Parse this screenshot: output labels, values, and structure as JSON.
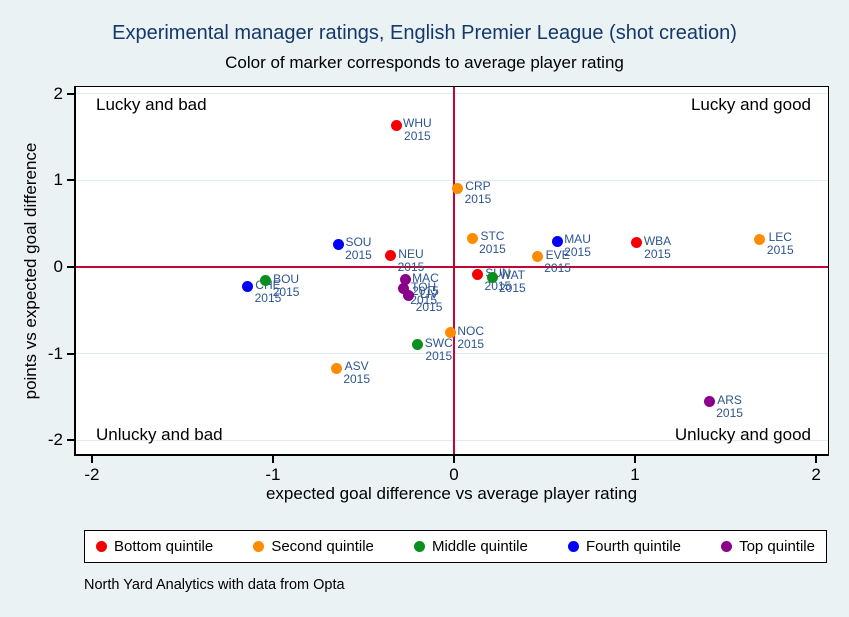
{
  "header": {
    "title": "Experimental manager ratings, English Premier League (shot creation)",
    "subtitle": "Color of marker corresponds to average player rating"
  },
  "source_note": "North Yard Analytics with data from Opta",
  "colors": {
    "background": "#eaf2f3",
    "plot_background": "#ffffff",
    "gridline": "#dfeaf2",
    "reference_line": "#c10534",
    "title_text": "#14386c",
    "marker_label_text": "#2d5590"
  },
  "chart_data": {
    "type": "scatter",
    "title": "Experimental manager ratings, English Premier League (shot creation)",
    "subtitle": "Color of marker corresponds to average player rating",
    "xlabel": "expected goal difference vs average player rating",
    "ylabel": "points vs expected goal difference",
    "xlim": [
      -2.088,
      2.066
    ],
    "ylim": [
      -2.161,
      2.08
    ],
    "x_ticks": [
      -2,
      -1,
      0,
      1,
      2
    ],
    "y_ticks": [
      2,
      1,
      0,
      -1,
      -2
    ],
    "grid": "horizontal",
    "reference_lines": {
      "x": 0,
      "y": 0
    },
    "quadrant_labels": {
      "top_left": "Lucky and bad",
      "top_right": "Lucky and good",
      "bottom_left": "Unlucky and bad",
      "bottom_right": "Unlucky and good"
    },
    "legend": {
      "position": "bottom",
      "entries": [
        {
          "label": "Bottom quintile",
          "color": "#f40000"
        },
        {
          "label": "Second quintile",
          "color": "#ff8c00"
        },
        {
          "label": "Middle quintile",
          "color": "#0a8f1f"
        },
        {
          "label": "Fourth quintile",
          "color": "#0000fa"
        },
        {
          "label": "Top quintile",
          "color": "#8b008b"
        }
      ]
    },
    "points": [
      {
        "team": "WHU",
        "year": "2015",
        "quintile": "Bottom quintile",
        "x": -0.32,
        "y": 1.64
      },
      {
        "team": "CRP",
        "year": "2015",
        "quintile": "Second quintile",
        "x": 0.02,
        "y": 0.91
      },
      {
        "team": "STC",
        "year": "2015",
        "quintile": "Second quintile",
        "x": 0.1,
        "y": 0.33
      },
      {
        "team": "MAU",
        "year": "2015",
        "quintile": "Fourth quintile",
        "x": 0.57,
        "y": 0.3
      },
      {
        "team": "EVE",
        "year": "2015",
        "quintile": "Second quintile",
        "x": 0.46,
        "y": 0.12
      },
      {
        "team": "WBA",
        "year": "2015",
        "quintile": "Bottom quintile",
        "x": 1.01,
        "y": 0.28
      },
      {
        "team": "LEC",
        "year": "2015",
        "quintile": "Second quintile",
        "x": 1.69,
        "y": 0.32
      },
      {
        "team": "SOU",
        "year": "2015",
        "quintile": "Fourth quintile",
        "x": -0.64,
        "y": 0.26
      },
      {
        "team": "NEU",
        "year": "2015",
        "quintile": "Bottom quintile",
        "x": -0.35,
        "y": 0.13
      },
      {
        "team": "CHE",
        "year": "2015",
        "quintile": "Fourth quintile",
        "x": -1.14,
        "y": -0.23
      },
      {
        "team": "BOU",
        "year": "2015",
        "quintile": "Middle quintile",
        "x": -1.04,
        "y": -0.16
      },
      {
        "team": "MAC",
        "year": "2015",
        "quintile": "Top quintile",
        "x": -0.27,
        "y": -0.15
      },
      {
        "team": "TOH",
        "year": "2015",
        "quintile": "Top quintile",
        "x": -0.28,
        "y": -0.25
      },
      {
        "team": "LIV",
        "year": "2015",
        "quintile": "Top quintile",
        "x": -0.25,
        "y": -0.33
      },
      {
        "team": "SUN",
        "year": "2015",
        "quintile": "Bottom quintile",
        "x": 0.13,
        "y": -0.09
      },
      {
        "team": "WAT",
        "year": "2015",
        "quintile": "Middle quintile",
        "x": 0.21,
        "y": -0.12
      },
      {
        "team": "NOC",
        "year": "2015",
        "quintile": "Second quintile",
        "x": -0.02,
        "y": -0.76
      },
      {
        "team": "SWC",
        "year": "2015",
        "quintile": "Middle quintile",
        "x": -0.2,
        "y": -0.9
      },
      {
        "team": "ASV",
        "year": "2015",
        "quintile": "Second quintile",
        "x": -0.65,
        "y": -1.17
      },
      {
        "team": "ARS",
        "year": "2015",
        "quintile": "Top quintile",
        "x": 1.41,
        "y": -1.56
      }
    ]
  }
}
